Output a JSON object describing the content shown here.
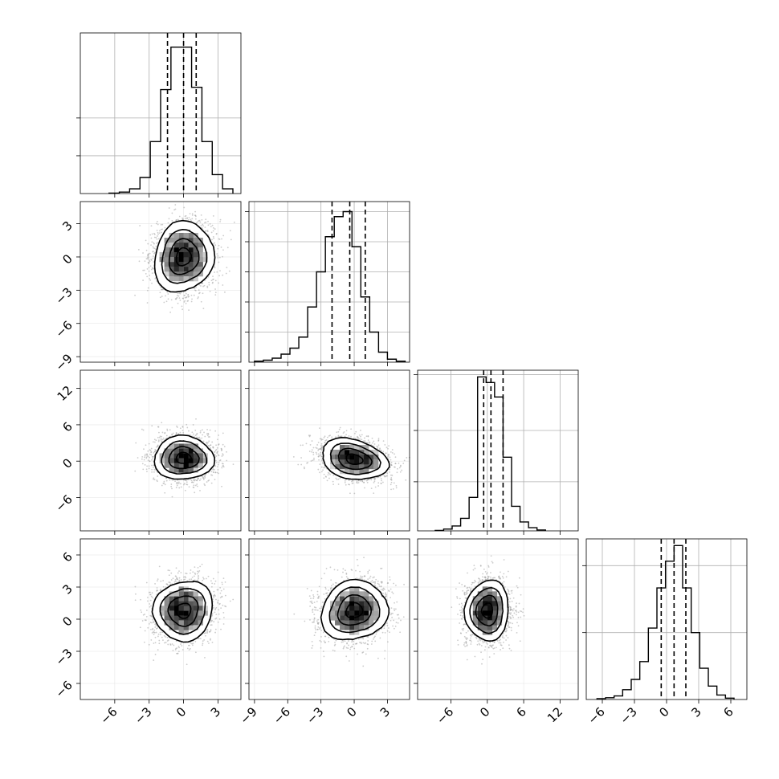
{
  "chart_data": {
    "type": "corner",
    "grid": true,
    "n_params": 4,
    "colors": {
      "line": "#000000",
      "grid": "#b0b0b0",
      "scatter": "#9a9a9a"
    },
    "variables": [
      {
        "lim": [
          -9.0,
          5.0
        ],
        "ticks": [
          -6,
          -3,
          0,
          3
        ],
        "tick_labels": [
          "−6",
          "−3",
          "0",
          "3"
        ],
        "mean": 0.0,
        "sd": 1.1,
        "quantiles": [
          -1.4,
          0.0,
          1.1
        ]
      },
      {
        "lim": [
          -9.5,
          5.0
        ],
        "ticks": [
          -9,
          -6,
          -3,
          0,
          3
        ],
        "tick_labels": [
          "−9",
          "−6",
          "−3",
          "0",
          "3"
        ],
        "mean": -0.4,
        "sd": 1.5,
        "quantiles": [
          -2.0,
          -0.4,
          1.0
        ]
      },
      {
        "lim": [
          -11.5,
          15.0
        ],
        "ticks": [
          -6,
          0,
          6,
          12
        ],
        "tick_labels": [
          "−6",
          "0",
          "6",
          "12"
        ],
        "mean": 0.6,
        "sd": 1.8,
        "quantiles": [
          -0.6,
          0.6,
          2.6
        ]
      },
      {
        "lim": [
          -7.5,
          7.5
        ],
        "ticks": [
          -6,
          -3,
          0,
          3,
          6
        ],
        "tick_labels": [
          "−6",
          "−3",
          "0",
          "3",
          "6"
        ],
        "mean": 0.7,
        "sd": 1.2,
        "quantiles": [
          -0.5,
          0.7,
          1.8
        ]
      }
    ],
    "histograms": [
      {
        "bin_edges": [
          -6.5,
          -5.6,
          -4.7,
          -3.8,
          -2.9,
          -2.0,
          -1.1,
          -0.2,
          0.7,
          1.6,
          2.5,
          3.4,
          4.3
        ],
        "counts": [
          1,
          3,
          10,
          34,
          110,
          220,
          310,
          310,
          225,
          110,
          40,
          10
        ],
        "ylim": [
          0,
          340
        ],
        "yticks": [
          80,
          160
        ],
        "grid_y": [
          80,
          160
        ]
      },
      {
        "bin_edges": [
          -9.0,
          -8.2,
          -7.4,
          -6.6,
          -5.8,
          -5.0,
          -4.2,
          -3.4,
          -2.6,
          -1.8,
          -1.0,
          -0.2,
          0.6,
          1.4,
          2.2,
          3.0,
          3.8,
          4.6
        ],
        "counts": [
          2,
          4,
          8,
          16,
          28,
          50,
          110,
          180,
          250,
          290,
          300,
          230,
          130,
          60,
          20,
          6,
          2
        ],
        "ylim": [
          0,
          320
        ],
        "yticks": [
          60,
          120,
          180,
          240,
          300
        ],
        "grid_y": [
          60,
          120,
          180,
          240,
          300
        ]
      },
      {
        "bin_edges": [
          -8.6,
          -7.2,
          -5.8,
          -4.4,
          -3.0,
          -1.6,
          -0.2,
          1.2,
          2.6,
          4.0,
          5.4,
          6.8,
          8.2,
          9.6
        ],
        "counts": [
          2,
          8,
          22,
          56,
          150,
          690,
          665,
          600,
          330,
          110,
          40,
          14,
          4
        ],
        "ylim": [
          0,
          720
        ],
        "yticks": [
          220,
          450,
          700
        ],
        "grid_y": [
          220,
          450,
          700
        ]
      },
      {
        "bin_edges": [
          -6.5,
          -5.7,
          -4.9,
          -4.1,
          -3.3,
          -2.5,
          -1.7,
          -0.9,
          -0.1,
          0.7,
          1.5,
          2.3,
          3.1,
          3.9,
          4.7,
          5.5,
          6.3
        ],
        "counts": [
          2,
          4,
          8,
          22,
          45,
          85,
          160,
          250,
          310,
          345,
          250,
          150,
          70,
          30,
          10,
          3
        ],
        "ylim": [
          0,
          360
        ],
        "yticks": [
          150,
          300
        ],
        "grid_y": [
          150,
          300
        ]
      }
    ],
    "pairs": [
      {
        "x": 0,
        "y": 1,
        "mean_x": 0.0,
        "mean_y": 0.0,
        "sd_x": 1.3,
        "sd_y": 1.6,
        "rho": 0.1,
        "bins": 20
      },
      {
        "x": 0,
        "y": 2,
        "mean_x": 0.0,
        "mean_y": 0.5,
        "sd_x": 1.3,
        "sd_y": 1.8,
        "rho": 0.0,
        "bins": 20
      },
      {
        "x": 1,
        "y": 2,
        "mean_x": 0.0,
        "mean_y": 0.3,
        "sd_x": 1.5,
        "sd_y": 1.7,
        "rho": -0.25,
        "bins": 20
      },
      {
        "x": 0,
        "y": 3,
        "mean_x": 0.0,
        "mean_y": 0.8,
        "sd_x": 1.3,
        "sd_y": 1.4,
        "rho": 0.05,
        "bins": 20
      },
      {
        "x": 1,
        "y": 3,
        "mean_x": 0.0,
        "mean_y": 0.8,
        "sd_x": 1.5,
        "sd_y": 1.4,
        "rho": 0.1,
        "bins": 20
      },
      {
        "x": 2,
        "y": 3,
        "mean_x": 0.0,
        "mean_y": 0.8,
        "sd_x": 1.8,
        "sd_y": 1.4,
        "rho": 0.05,
        "bins": 20
      }
    ],
    "contour_levels_sigma": [
      0.5,
      1.0,
      1.5,
      2.0
    ],
    "n_samples": 2500
  }
}
